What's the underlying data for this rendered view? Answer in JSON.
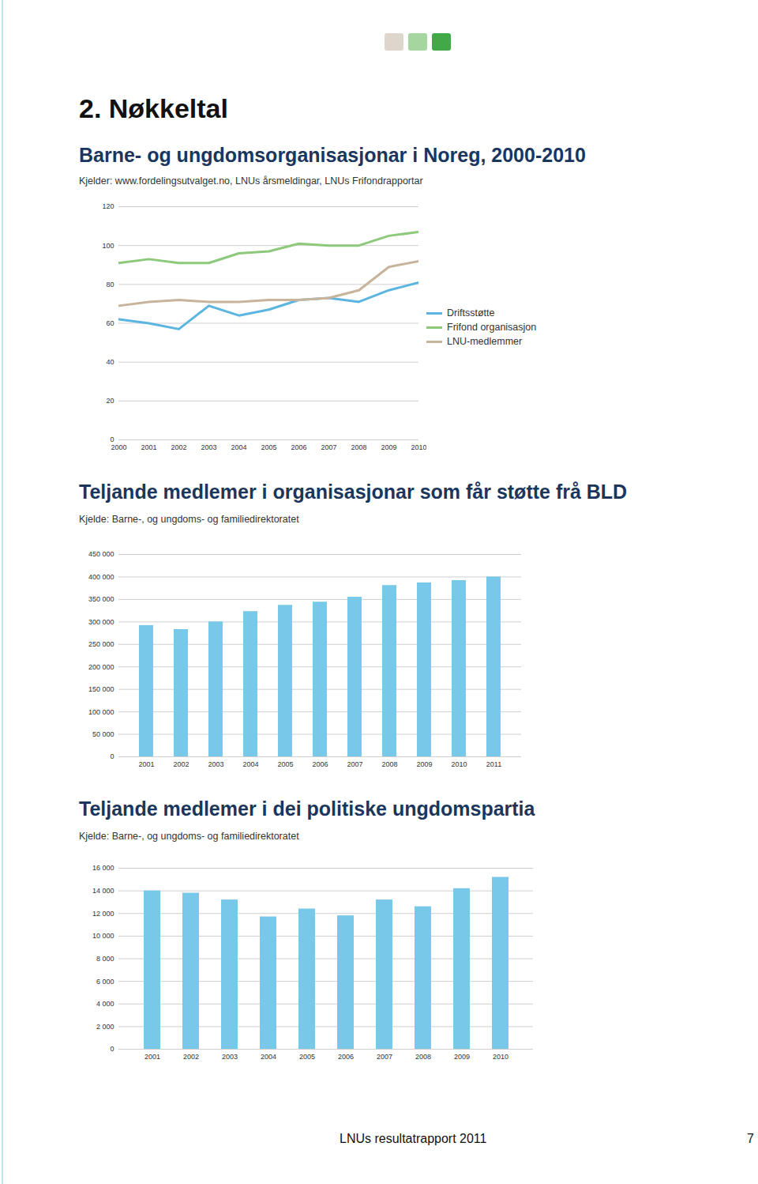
{
  "heading": "2. Nøkkeltal",
  "footer": "LNUs resultatrapport 2011",
  "page_number": "7",
  "chart_data": [
    {
      "type": "line",
      "title": "Barne- og ungdomsorganisasjonar i Noreg, 2000-2010",
      "subtitle": "Kjelder: www.fordelingsutvalget.no, LNUs årsmeldingar, LNUs Frifondrapportar",
      "x": [
        2000,
        2001,
        2002,
        2003,
        2004,
        2005,
        2006,
        2007,
        2008,
        2009,
        2010
      ],
      "series": [
        {
          "name": "Driftsstøtte",
          "color": "#5bb5e0",
          "values": [
            62,
            60,
            57,
            69,
            64,
            67,
            72,
            73,
            71,
            77,
            81
          ]
        },
        {
          "name": "Frifond organisasjon",
          "color": "#8cc97a",
          "values": [
            91,
            93,
            91,
            91,
            96,
            97,
            101,
            100,
            100,
            105,
            107
          ]
        },
        {
          "name": "LNU-medlemmer",
          "color": "#c8b49a",
          "values": [
            69,
            71,
            72,
            71,
            71,
            72,
            72,
            73,
            77,
            89,
            92
          ]
        }
      ],
      "xlim": [
        2000,
        2010
      ],
      "xticks": [
        2000,
        2001,
        2002,
        2003,
        2004,
        2005,
        2006,
        2007,
        2008,
        2009,
        2010
      ],
      "ylim": [
        0,
        120
      ],
      "yticks": [
        0,
        20,
        40,
        60,
        80,
        100,
        120
      ],
      "grid": true,
      "legend": "right"
    },
    {
      "type": "bar",
      "title": "Teljande medlemer i organisasjonar som får støtte frå BLD",
      "subtitle": "Kjelde: Barne-, og ungdoms- og familiedirektoratet",
      "categories": [
        "2001",
        "2002",
        "2003",
        "2004",
        "2005",
        "2006",
        "2007",
        "2008",
        "2009",
        "2010",
        "2011"
      ],
      "values": [
        292000,
        283000,
        300000,
        323000,
        337000,
        344000,
        355000,
        381000,
        387000,
        392000,
        400000
      ],
      "color": "#78c9e9",
      "ylim": [
        0,
        450000
      ],
      "yticks": [
        0,
        {
          "value": 50000,
          "label": "50 000"
        },
        {
          "value": 100000,
          "label": "100 000"
        },
        {
          "value": 150000,
          "label": "150 000"
        },
        {
          "value": 200000,
          "label": "200 000"
        },
        {
          "value": 250000,
          "label": "250 000"
        },
        {
          "value": 300000,
          "label": "300 000"
        },
        {
          "value": 350000,
          "label": "350 000"
        },
        {
          "value": 400000,
          "label": "400 000"
        },
        {
          "value": 450000,
          "label": "450 000"
        }
      ],
      "grid": true
    },
    {
      "type": "bar",
      "title": "Teljande medlemer i dei politiske ungdomspartia",
      "subtitle": "Kjelde: Barne-, og ungdoms- og familiedirektoratet",
      "categories": [
        "2001",
        "2002",
        "2003",
        "2004",
        "2005",
        "2006",
        "2007",
        "2008",
        "2009",
        "2010"
      ],
      "values": [
        14000,
        13800,
        13200,
        11700,
        12400,
        11800,
        13200,
        12600,
        14200,
        15200
      ],
      "color": "#78c9e9",
      "ylim": [
        0,
        16000
      ],
      "yticks": [
        0,
        {
          "value": 2000,
          "label": "2 000"
        },
        {
          "value": 4000,
          "label": "4 000"
        },
        {
          "value": 6000,
          "label": "6 000"
        },
        {
          "value": 8000,
          "label": "8 000"
        },
        {
          "value": 10000,
          "label": "10 000"
        },
        {
          "value": 12000,
          "label": "12 000"
        },
        {
          "value": 14000,
          "label": "14 000"
        },
        {
          "value": 16000,
          "label": "16 000"
        }
      ],
      "grid": true
    }
  ]
}
